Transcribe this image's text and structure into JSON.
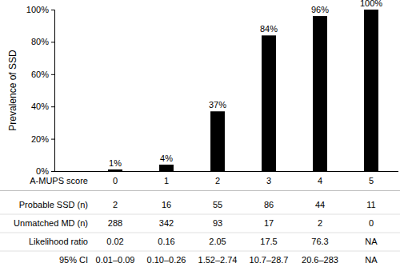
{
  "chart_data": {
    "type": "bar",
    "categories": [
      "0",
      "1",
      "2",
      "3",
      "4",
      "5"
    ],
    "values": [
      1,
      4,
      37,
      84,
      96,
      100
    ],
    "value_labels": [
      "1%",
      "4%",
      "37%",
      "84%",
      "96%",
      "100%"
    ],
    "color": "#000000",
    "ylim": [
      0,
      100
    ],
    "yticks": [
      {
        "value": 0,
        "label": "0%"
      },
      {
        "value": 20,
        "label": "20%"
      },
      {
        "value": 40,
        "label": "40%"
      },
      {
        "value": 60,
        "label": "60%"
      },
      {
        "value": 80,
        "label": "80%"
      },
      {
        "value": 100,
        "label": "100%"
      }
    ],
    "y_label": "Prevalence of SSD",
    "x_label": "A-MUPS score",
    "data_labels": true,
    "grid": false
  },
  "table": {
    "rows": [
      {
        "label": "Probable SSD (n)",
        "values": [
          2,
          16,
          55,
          86,
          44,
          11
        ]
      },
      {
        "label": "Unmatched MD (n)",
        "values": [
          288,
          342,
          93,
          17,
          2,
          0
        ]
      },
      {
        "label": "Likelihood ratio",
        "values": [
          0.02,
          0.16,
          2.05,
          17.5,
          76.3,
          "NA"
        ]
      },
      {
        "label": "95% CI",
        "values": [
          "0.01–0.09",
          "0.10–0.26",
          "1.52–2.74",
          "10.7–28.7",
          "20.6–283",
          "NA"
        ]
      }
    ]
  }
}
